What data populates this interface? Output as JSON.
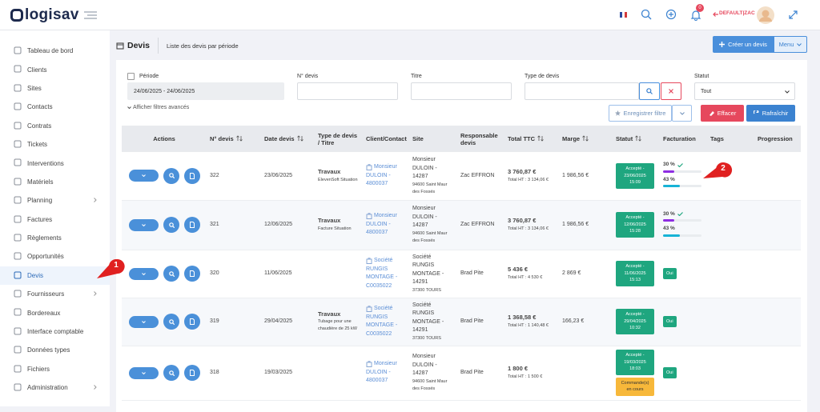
{
  "header": {
    "logo": "logisav",
    "notifications": "0",
    "user": "DEFAULT|ZAC"
  },
  "sidebar": {
    "items": [
      {
        "label": "Tableau de bord"
      },
      {
        "label": "Clients"
      },
      {
        "label": "Sites"
      },
      {
        "label": "Contacts"
      },
      {
        "label": "Contrats"
      },
      {
        "label": "Tickets"
      },
      {
        "label": "Interventions"
      },
      {
        "label": "Matériels"
      },
      {
        "label": "Planning",
        "has_submenu": true
      },
      {
        "label": "Factures"
      },
      {
        "label": "Règlements"
      },
      {
        "label": "Opportunités"
      },
      {
        "label": "Devis",
        "active": true
      },
      {
        "label": "Fournisseurs",
        "has_submenu": true
      },
      {
        "label": "Bordereaux"
      },
      {
        "label": "Interface comptable"
      },
      {
        "label": "Données types"
      },
      {
        "label": "Fichiers"
      },
      {
        "label": "Administration",
        "has_submenu": true
      }
    ]
  },
  "page": {
    "title": "Devis",
    "subtitle": "Liste des devis par période",
    "create_button": "Créer un devis",
    "menu_button": "Menu"
  },
  "filters": {
    "period_label": "Période",
    "period_value": "24/06/2025 - 24/06/2025",
    "number_label": "N° devis",
    "title_label": "Titre",
    "type_label": "Type de devis",
    "status_label": "Statut",
    "status_value": "Tout",
    "advanced": "Afficher filtres avancés",
    "save_button": "Enregistrer filtre",
    "clear_button": "Effacer",
    "refresh_button": "Rafraîchir"
  },
  "table": {
    "columns": [
      {
        "label": "Actions"
      },
      {
        "label": "N° devis",
        "sortable": true
      },
      {
        "label": "Date devis",
        "sortable": true
      },
      {
        "label": "Type de devis / Titre"
      },
      {
        "label": "Client/Contact"
      },
      {
        "label": "Site"
      },
      {
        "label": "Responsable devis"
      },
      {
        "label": "Total TTC",
        "sortable": true
      },
      {
        "label": "Marge",
        "sortable": true
      },
      {
        "label": "Statut",
        "sortable": true
      },
      {
        "label": "Facturation"
      },
      {
        "label": "Tags"
      },
      {
        "label": "Progression"
      }
    ],
    "rows": [
      {
        "number": "322",
        "date": "23/06/2025",
        "type": "Travaux",
        "title": "ElevenSoft Situation",
        "client": "Monsieur DULOIN - 4800037",
        "site_name": "Monsieur DULOIN - 14287",
        "site_address": "94600 Saint Maur des Fossés",
        "manager": "Zac EFFRON",
        "total_ttc": "3 760,87 €",
        "total_ht": "Total HT : 3 134,06 €",
        "margin": "1 986,56 €",
        "status": "Accepté - 23/06/2025 15:09",
        "billing": [
          {
            "label": "30 %",
            "done": true,
            "color": "#8e2de2"
          },
          {
            "label": "43 %",
            "color": "#17b3d6"
          }
        ]
      },
      {
        "number": "321",
        "date": "12/06/2025",
        "type": "Travaux",
        "title": "Facture Situation",
        "client": "Monsieur DULOIN - 4800037",
        "site_name": "Monsieur DULOIN - 14287",
        "site_address": "94600 Saint Maur des Fossés",
        "manager": "Zac EFFRON",
        "total_ttc": "3 760,87 €",
        "total_ht": "Total HT : 3 134,06 €",
        "margin": "1 986,56 €",
        "status": "Accepté - 12/06/2025 15:28",
        "billing": [
          {
            "label": "30 %",
            "done": true,
            "color": "#8e2de2"
          },
          {
            "label": "43 %",
            "color": "#17b3d6"
          }
        ]
      },
      {
        "number": "320",
        "date": "11/06/2025",
        "client": "Société RUNGIS MONTAGE - C0035022",
        "site_name": "Société RUNGIS MONTAGE - 14291",
        "site_address": "37300 TOURS",
        "manager": "Brad Pite",
        "total_ttc": "5 436 €",
        "total_ht": "Total HT : 4 530 €",
        "margin": "2 869 €",
        "status": "Accepté - 11/06/2025 15:13",
        "billing_tag": "Oui"
      },
      {
        "number": "319",
        "date": "29/04/2025",
        "type": "Travaux",
        "title": "Tubage pour une chaudière de 25 kW",
        "client": "Société RUNGIS MONTAGE - C0035022",
        "site_name": "Société RUNGIS MONTAGE - 14291",
        "site_address": "37300 TOURS",
        "manager": "Brad Pite",
        "total_ttc": "1 368,58 €",
        "total_ht": "Total HT : 1 140,48 €",
        "margin": "166,23 €",
        "status": "Accepté - 29/04/2025 10:32",
        "billing_tag": "Oui"
      },
      {
        "number": "318",
        "date": "19/03/2025",
        "client": "Monsieur DULOIN - 4800037",
        "site_name": "Monsieur DULOIN - 14287",
        "site_address": "94600 Saint Maur des Fossés",
        "manager": "Brad Pite",
        "total_ttc": "1 800 €",
        "total_ht": "Total HT : 1 500 €",
        "status": "Accepté - 19/03/2025 18:03",
        "order_status": "Commande(s) en cours",
        "billing_tag": "Oui"
      }
    ]
  },
  "annotations": [
    "1",
    "2"
  ]
}
